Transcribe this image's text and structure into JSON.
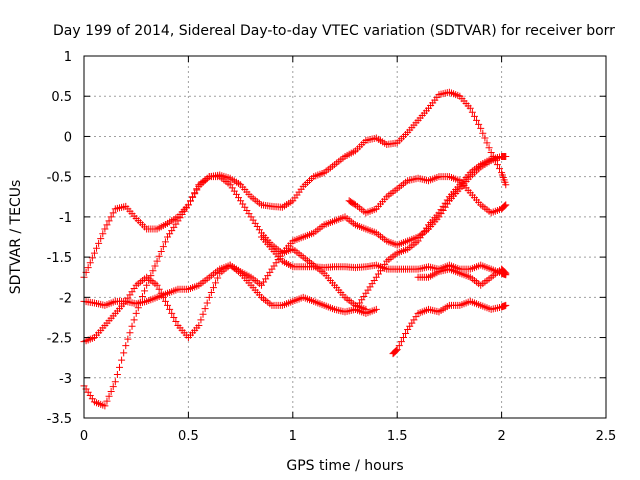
{
  "chart_data": {
    "type": "scatter",
    "title": "Day 199 of 2014, Sidereal Day-to-day VTEC variation (SDTVAR) for receiver borr",
    "xlabel": "GPS time / hours",
    "ylabel": "SDTVAR / TECUs",
    "xlim": [
      0,
      2.5
    ],
    "ylim": [
      -3.5,
      1
    ],
    "xticks": [
      0,
      0.5,
      1,
      1.5,
      2,
      2.5
    ],
    "yticks": [
      -3.5,
      -3,
      -2.5,
      -2,
      -1.5,
      -1,
      -0.5,
      0,
      0.5,
      1
    ],
    "xtick_labels": [
      "0",
      "0.5",
      "1",
      "1.5",
      "2",
      "2.5"
    ],
    "ytick_labels": [
      "-3.5",
      "-3",
      "-2.5",
      "-2",
      "-1.5",
      "-1",
      "-0.5",
      "0",
      "0.5",
      "1"
    ],
    "grid": true,
    "marker": "plus",
    "color": "#ff0000",
    "series": [
      {
        "x": [
          0,
          0.05,
          0.1,
          0.15,
          0.2,
          0.25,
          0.3,
          0.35,
          0.4,
          0.45,
          0.5,
          0.55,
          0.6,
          0.65,
          0.7,
          0.75,
          0.8,
          0.85,
          0.9,
          0.95,
          1.0,
          1.05,
          1.1,
          1.15,
          1.2,
          1.25,
          1.3,
          1.35,
          1.4,
          1.45,
          1.5,
          1.55,
          1.6,
          1.65,
          1.7,
          1.75,
          1.8,
          1.85,
          1.9,
          1.95,
          2.0,
          2.02
        ],
        "y": [
          -1.75,
          -1.45,
          -1.15,
          -0.9,
          -0.87,
          -1.02,
          -1.15,
          -1.15,
          -1.08,
          -1.0,
          -0.85,
          -0.62,
          -0.5,
          -0.48,
          -0.52,
          -0.6,
          -0.75,
          -0.85,
          -0.87,
          -0.88,
          -0.8,
          -0.62,
          -0.5,
          -0.45,
          -0.35,
          -0.25,
          -0.18,
          -0.05,
          -0.02,
          -0.1,
          -0.08,
          0.05,
          0.2,
          0.35,
          0.52,
          0.55,
          0.5,
          0.35,
          0.1,
          -0.2,
          -0.45,
          -0.6
        ]
      },
      {
        "x": [
          0,
          0.05,
          0.1,
          0.15,
          0.2,
          0.25,
          0.3,
          0.35,
          0.4,
          0.45,
          0.5,
          0.55,
          0.6,
          0.65,
          0.7,
          0.75,
          0.8,
          0.85,
          0.9,
          0.95,
          1.0,
          1.05,
          1.1,
          1.15,
          1.2,
          1.25,
          1.3,
          1.35,
          1.4
        ],
        "y": [
          -2.05,
          -2.07,
          -2.1,
          -2.05,
          -2.05,
          -2.08,
          -2.05,
          -2.0,
          -1.95,
          -1.9,
          -1.9,
          -1.85,
          -1.75,
          -1.65,
          -1.6,
          -1.7,
          -1.85,
          -2.0,
          -2.1,
          -2.1,
          -2.05,
          -2.0,
          -2.05,
          -2.1,
          -2.15,
          -2.18,
          -2.15,
          -2.2,
          -2.15
        ]
      },
      {
        "x": [
          0,
          0.05,
          0.1,
          0.15,
          0.2,
          0.25,
          0.3,
          0.35,
          0.4,
          0.45,
          0.5,
          0.55,
          0.6,
          0.65,
          0.7,
          0.75,
          0.8,
          0.85,
          0.9,
          0.95,
          1.0,
          1.05,
          1.1,
          1.15,
          1.2,
          1.25,
          1.3,
          1.35
        ],
        "y": [
          -3.1,
          -3.3,
          -3.35,
          -3.05,
          -2.6,
          -2.2,
          -1.85,
          -1.55,
          -1.25,
          -1.05,
          -0.85,
          -0.6,
          -0.5,
          -0.5,
          -0.6,
          -0.8,
          -1.0,
          -1.2,
          -1.35,
          -1.45,
          -1.4,
          -1.5,
          -1.6,
          -1.7,
          -1.85,
          -2.0,
          -2.1,
          -2.15
        ]
      },
      {
        "x": [
          0,
          0.05,
          0.1,
          0.15,
          0.2,
          0.25,
          0.3,
          0.35,
          0.4,
          0.45,
          0.5,
          0.55,
          0.6,
          0.65,
          0.7,
          0.75,
          0.8,
          0.85,
          0.9,
          0.95,
          1.0,
          1.05,
          1.1,
          1.15,
          1.2,
          1.25,
          1.3,
          1.35,
          1.4,
          1.45,
          1.5,
          1.55,
          1.6,
          1.65,
          1.7,
          1.75,
          1.8,
          1.85,
          1.9,
          1.95,
          2.0
        ],
        "y": [
          -2.55,
          -2.5,
          -2.35,
          -2.2,
          -2.05,
          -1.85,
          -1.75,
          -1.85,
          -2.1,
          -2.35,
          -2.5,
          -2.35,
          -2.0,
          -1.7,
          -1.6,
          -1.68,
          -1.75,
          -1.85,
          -1.65,
          -1.45,
          -1.3,
          -1.25,
          -1.2,
          -1.1,
          -1.05,
          -1.0,
          -1.1,
          -1.15,
          -1.2,
          -1.3,
          -1.35,
          -1.3,
          -1.25,
          -1.15,
          -1.0,
          -0.8,
          -0.65,
          -0.5,
          -0.38,
          -0.3,
          -0.25
        ]
      },
      {
        "x": [
          0.85,
          0.9,
          0.95,
          1.0,
          1.05,
          1.1,
          1.15,
          1.2,
          1.25,
          1.3,
          1.35,
          1.4,
          1.45,
          1.5,
          1.55,
          1.6,
          1.65,
          1.7,
          1.75,
          1.8,
          1.85,
          1.9,
          1.95,
          2.0,
          2.02
        ],
        "y": [
          -1.25,
          -1.4,
          -1.55,
          -1.62,
          -1.62,
          -1.62,
          -1.63,
          -1.62,
          -1.62,
          -1.63,
          -1.62,
          -1.6,
          -1.65,
          -1.65,
          -1.65,
          -1.65,
          -1.62,
          -1.65,
          -1.6,
          -1.65,
          -1.65,
          -1.6,
          -1.65,
          -1.7,
          -1.72
        ]
      },
      {
        "x": [
          1.27,
          1.3,
          1.35,
          1.4,
          1.45,
          1.5,
          1.55,
          1.6,
          1.65,
          1.7,
          1.75,
          1.8,
          1.85,
          1.9,
          1.95,
          2.0,
          2.02
        ],
        "y": [
          -0.8,
          -0.85,
          -0.95,
          -0.9,
          -0.75,
          -0.65,
          -0.55,
          -0.52,
          -0.55,
          -0.5,
          -0.5,
          -0.55,
          -0.7,
          -0.85,
          -0.95,
          -0.9,
          -0.85
        ]
      },
      {
        "x": [
          1.48,
          1.5,
          1.55,
          1.6,
          1.65,
          1.7,
          1.75,
          1.8,
          1.85,
          1.9,
          1.95,
          2.0,
          2.02
        ],
        "y": [
          -2.7,
          -2.65,
          -2.4,
          -2.2,
          -2.15,
          -2.18,
          -2.1,
          -2.1,
          -2.05,
          -2.1,
          -2.15,
          -2.12,
          -2.1
        ]
      },
      {
        "x": [
          1.3,
          1.35,
          1.4,
          1.45,
          1.5,
          1.55,
          1.6,
          1.65,
          1.7,
          1.75,
          1.8,
          1.85,
          1.9,
          1.95,
          2.0,
          2.02
        ],
        "y": [
          -2.15,
          -1.95,
          -1.75,
          -1.55,
          -1.45,
          -1.4,
          -1.3,
          -1.1,
          -0.95,
          -0.75,
          -0.6,
          -0.45,
          -0.35,
          -0.28,
          -0.25,
          -0.25
        ]
      },
      {
        "x": [
          1.6,
          1.65,
          1.7,
          1.75,
          1.8,
          1.85,
          1.9,
          1.95,
          2.0,
          2.02
        ],
        "y": [
          -1.75,
          -1.75,
          -1.68,
          -1.65,
          -1.7,
          -1.75,
          -1.85,
          -1.75,
          -1.65,
          -1.7
        ]
      }
    ]
  }
}
